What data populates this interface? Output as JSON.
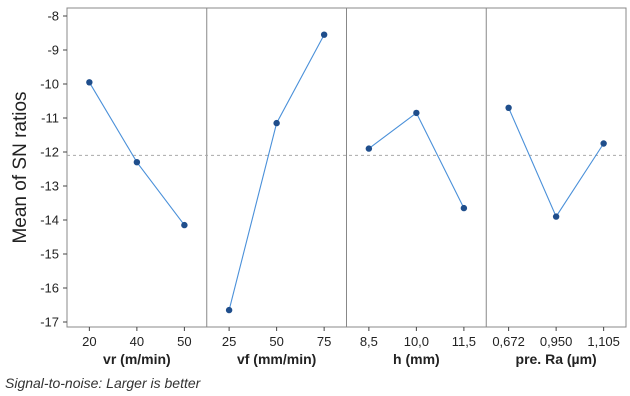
{
  "chart_data": {
    "type": "line",
    "ylabel": "Mean of SN ratios",
    "footnote": "Signal-to-noise: Larger is better",
    "ylim": [
      -17,
      -8
    ],
    "y_ticks": [
      "-17",
      "-16",
      "-15",
      "-14",
      "-13",
      "-12",
      "-11",
      "-10",
      "-9",
      "-8"
    ],
    "reference_line": -12.1,
    "colors": {
      "line": "#4a90d9",
      "point": "#1f4e8c",
      "reference": "#aaaaaa",
      "frame": "#888888"
    },
    "panels": [
      {
        "factor": "vr (m/min)",
        "levels": [
          "20",
          "40",
          "50"
        ],
        "values": [
          -9.95,
          -12.3,
          -14.15
        ]
      },
      {
        "factor": "vf (mm/min)",
        "levels": [
          "25",
          "50",
          "75"
        ],
        "values": [
          -16.65,
          -11.15,
          -8.55
        ]
      },
      {
        "factor": "h (mm)",
        "levels": [
          "8,5",
          "10,0",
          "11,5"
        ],
        "values": [
          -11.9,
          -10.85,
          -13.65
        ]
      },
      {
        "factor": "pre. Ra (µm)",
        "levels": [
          "0,672",
          "0,950",
          "1,105"
        ],
        "values": [
          -10.7,
          -13.9,
          -11.75
        ]
      }
    ]
  }
}
